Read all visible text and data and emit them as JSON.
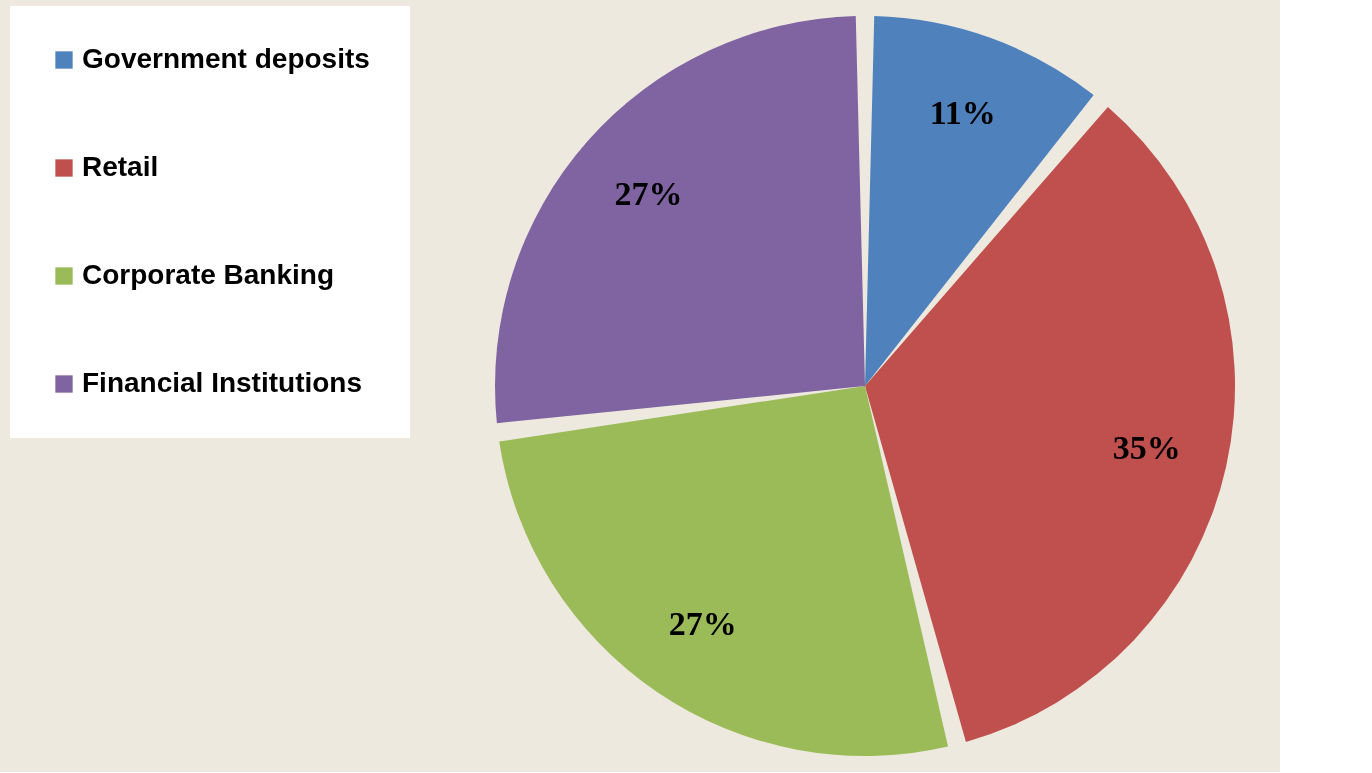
{
  "chart_data": {
    "type": "pie",
    "categories": [
      "Government deposits",
      "Retail",
      "Corporate Banking",
      "Financial Institutions"
    ],
    "values": [
      11,
      35,
      27,
      27
    ],
    "colors": [
      "#4f81bd",
      "#c0504d",
      "#9bbb59",
      "#8064a2"
    ],
    "value_labels": [
      "11%",
      "35%",
      "27%",
      "27%"
    ],
    "legend": "left"
  }
}
